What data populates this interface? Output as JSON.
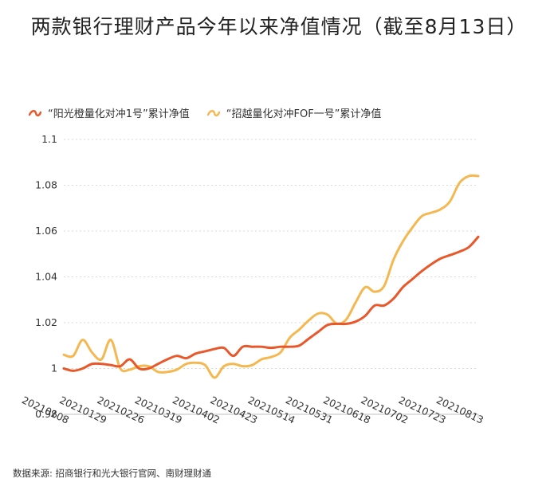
{
  "header": {
    "title": "两款银行理财产品今年以来净值情况（截至8月13日）"
  },
  "footer": {
    "source": "数据来源: 招商银行和光大银行官网、南财理财通"
  },
  "chart_data": {
    "type": "line",
    "title": "两款银行理财产品今年以来净值情况（截至8月13日）",
    "xlabel": "",
    "ylabel": "",
    "ylim": [
      0.98,
      1.1
    ],
    "yticks": [
      "0.98",
      "1",
      "1.02",
      "1.04",
      "1.06",
      "1.08",
      "1.1"
    ],
    "categories": [
      "20210108",
      "20210129",
      "20210226",
      "20210319",
      "20210402",
      "20210423",
      "20210514",
      "20210531",
      "20210618",
      "20210702",
      "20210723",
      "20210813"
    ],
    "grid": "horizontal",
    "legend_position": "top-left",
    "series": [
      {
        "name": "“阳光橙量化对冲1号”累计净值",
        "color": "#E8582A",
        "x": [
          0,
          0.25,
          0.5,
          0.75,
          1,
          1.25,
          1.5,
          1.75,
          2,
          2.25,
          2.5,
          2.75,
          3,
          3.25,
          3.5,
          3.75,
          4,
          4.25,
          4.5,
          4.75,
          5,
          5.25,
          5.5,
          5.75,
          6,
          6.25,
          6.5,
          6.75,
          7,
          7.25,
          7.5,
          7.75,
          8,
          8.25,
          8.5,
          8.75,
          9,
          9.25,
          9.5,
          9.75,
          10,
          10.25,
          10.5,
          10.75,
          11
        ],
        "values": [
          1.0,
          0.999,
          1.0,
          1.002,
          1.002,
          1.0015,
          1.001,
          1.004,
          1.0,
          1.0,
          1.002,
          1.004,
          1.0055,
          1.0045,
          1.0065,
          1.0075,
          1.0085,
          1.009,
          1.0055,
          1.0095,
          1.0095,
          1.0095,
          1.009,
          1.0095,
          1.0095,
          1.01,
          1.013,
          1.016,
          1.019,
          1.0195,
          1.0195,
          1.0205,
          1.023,
          1.0275,
          1.0275,
          1.0305,
          1.0355,
          1.039,
          1.0425,
          1.0455,
          1.048,
          1.0495,
          1.051,
          1.053,
          1.0575
        ]
      },
      {
        "name": "“招越量化对冲FOF一号”累计净值",
        "color": "#F5B850",
        "x": [
          0,
          0.25,
          0.5,
          0.75,
          1,
          1.25,
          1.5,
          1.75,
          2,
          2.25,
          2.5,
          2.75,
          3,
          3.25,
          3.5,
          3.75,
          4,
          4.25,
          4.5,
          4.75,
          5,
          5.25,
          5.5,
          5.75,
          6,
          6.25,
          6.5,
          6.75,
          7,
          7.25,
          7.5,
          7.75,
          8,
          8.25,
          8.5,
          8.75,
          9,
          9.25,
          9.5,
          9.75,
          10,
          10.25,
          10.5,
          10.75,
          11
        ],
        "values": [
          1.006,
          1.0055,
          1.0125,
          1.007,
          1.004,
          1.0125,
          1.0,
          0.9995,
          1.001,
          1.001,
          0.9985,
          0.9985,
          0.9995,
          1.002,
          1.0025,
          1.0015,
          0.996,
          1.001,
          1.002,
          1.001,
          1.0015,
          1.004,
          1.005,
          1.007,
          1.0135,
          1.017,
          1.021,
          1.024,
          1.0235,
          1.0195,
          1.0215,
          1.029,
          1.0355,
          1.0335,
          1.036,
          1.0475,
          1.0555,
          1.0615,
          1.0665,
          1.068,
          1.0695,
          1.073,
          1.081,
          1.084,
          1.084
        ]
      }
    ]
  }
}
